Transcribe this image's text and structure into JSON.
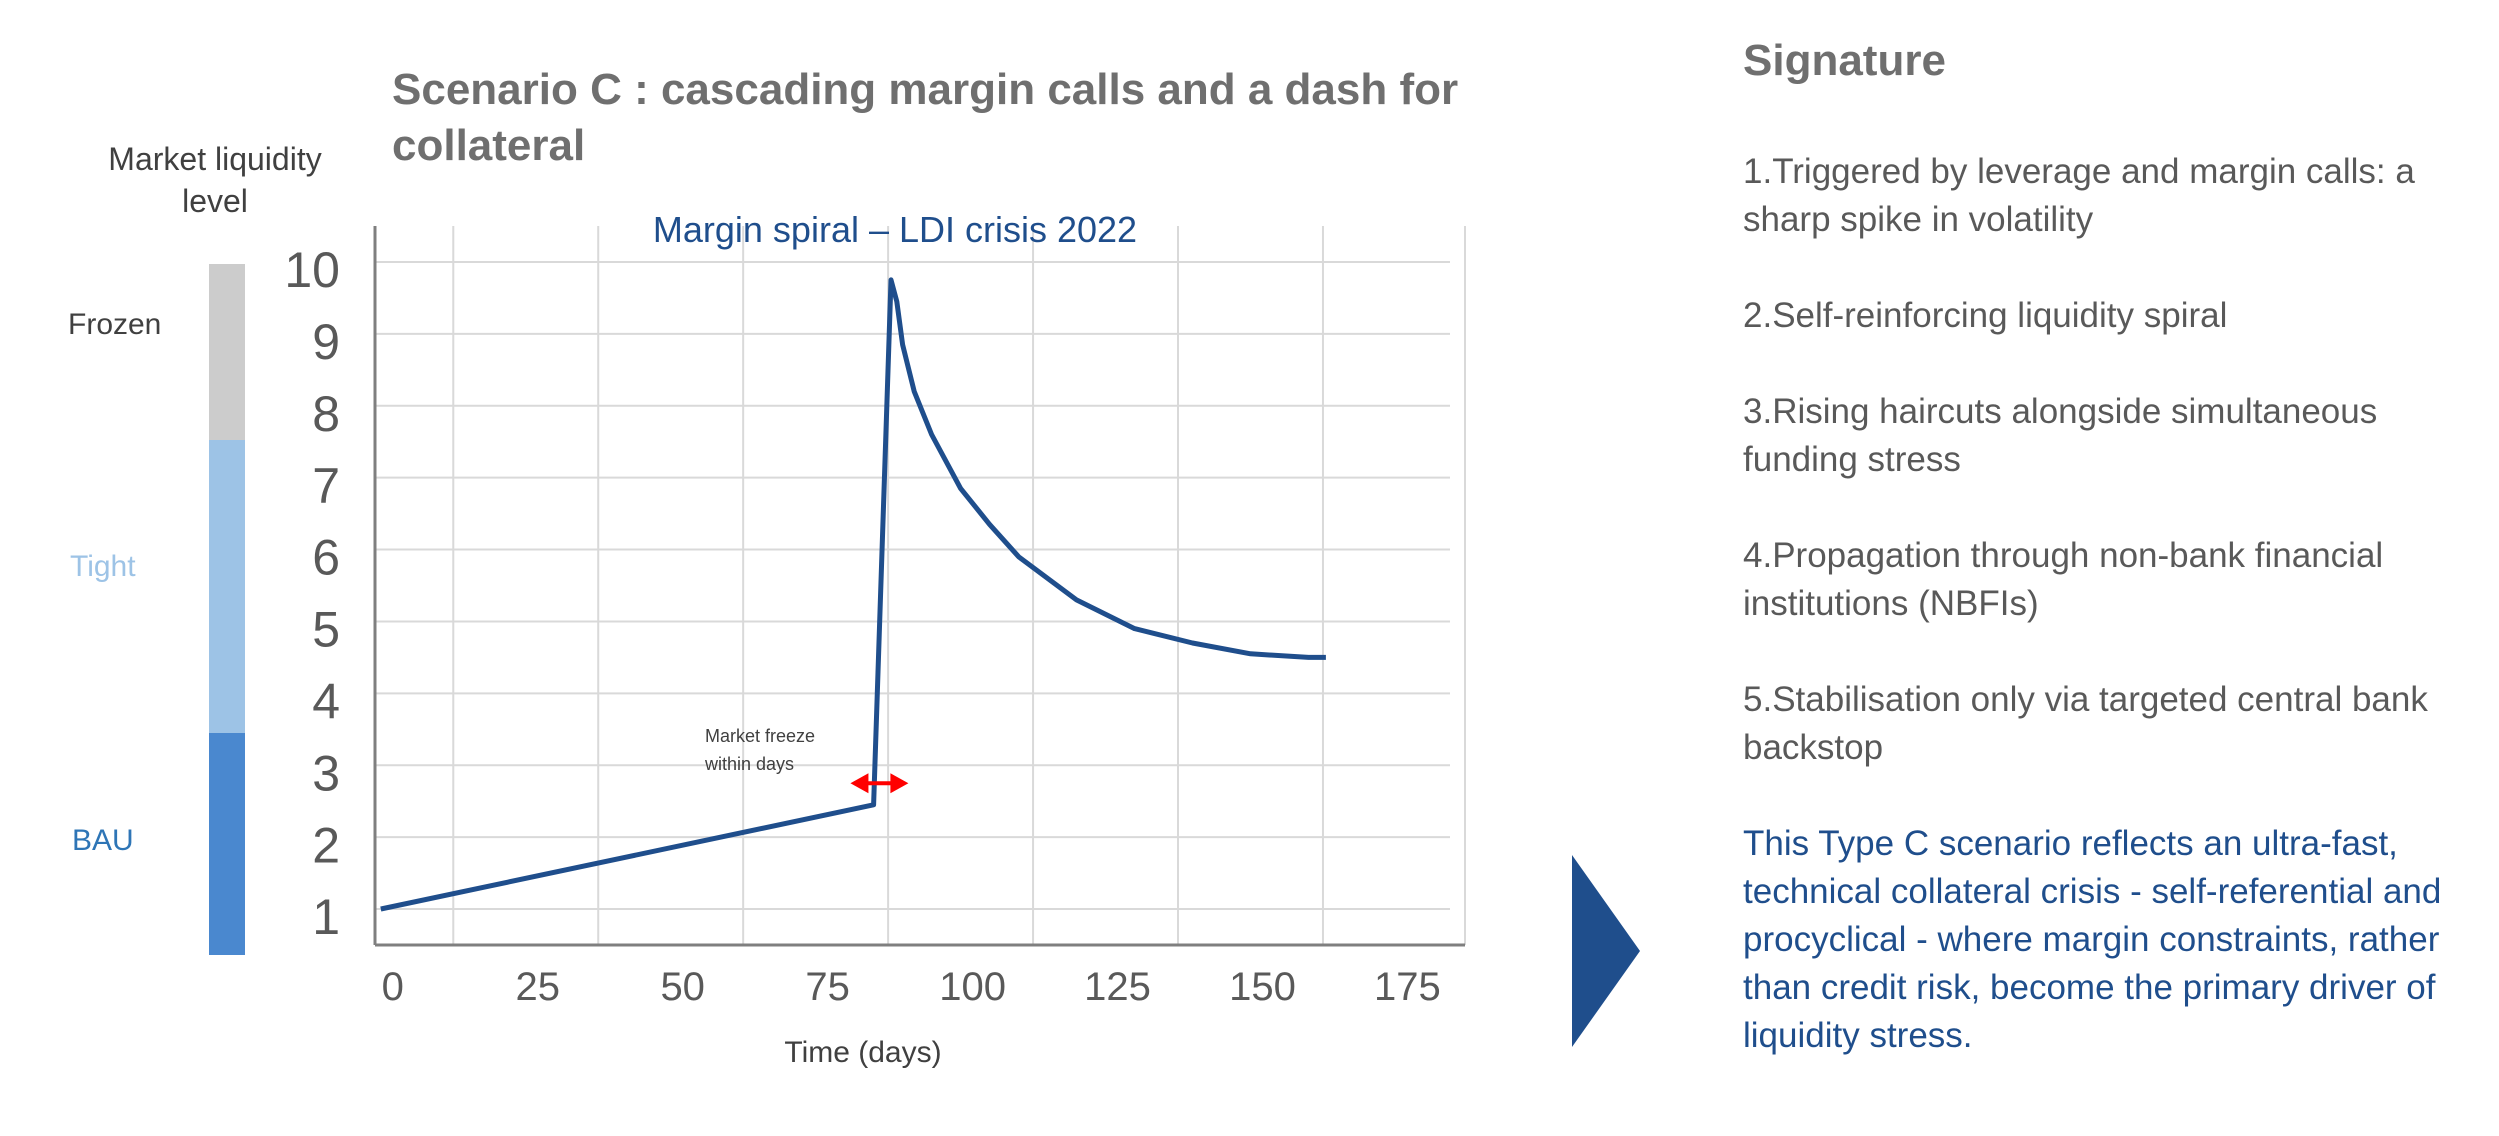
{
  "title": "Scenario C : cascading margin calls and a dash for collateral",
  "liquidity_scale": {
    "label": "Market liquidity level",
    "bands": [
      {
        "name": "Frozen",
        "color": "#cccccc",
        "label_color": "#404040",
        "from": 8,
        "to": 10.4
      },
      {
        "name": "Tight",
        "color": "#9dc3e6",
        "label_color": "#9dc3e6",
        "from": 4,
        "to": 8
      },
      {
        "name": "BAU",
        "color": "#4a88cf",
        "label_color": "#2e75b6",
        "from": 0.6,
        "to": 4
      }
    ]
  },
  "chart_data": {
    "type": "line",
    "title": "Margin spiral – LDI crisis 2022",
    "xlabel": "Time (days)",
    "ylabel": "",
    "xlim": [
      -1,
      187
    ],
    "ylim": [
      0.6,
      10.6
    ],
    "x_ticks": [
      0,
      25,
      50,
      75,
      100,
      125,
      150,
      175
    ],
    "y_ticks": [
      1,
      2,
      3,
      4,
      5,
      6,
      7,
      8,
      9,
      10
    ],
    "grid": true,
    "series": [
      {
        "name": "Market liquidity level",
        "color": "#1f4e8c",
        "x": [
          0,
          85,
          88,
          89,
          90,
          92,
          95,
          100,
          105,
          110,
          120,
          130,
          140,
          150,
          160,
          163
        ],
        "y": [
          1.1,
          2.55,
          9.85,
          9.55,
          8.95,
          8.3,
          7.7,
          6.95,
          6.45,
          6.0,
          5.4,
          5.0,
          4.8,
          4.65,
          4.6,
          4.6
        ]
      }
    ],
    "annotations": [
      {
        "text": "Market freeze within days",
        "x_from": 81,
        "x_to": 91,
        "y": 2.85,
        "color": "#ff0000"
      }
    ]
  },
  "signature": {
    "title": "Signature",
    "items": [
      "1.Triggered by leverage and margin calls: a sharp spike in volatility",
      "2.Self-reinforcing liquidity spiral",
      "3.Rising haircuts alongside simultaneous funding stress",
      "4.Propagation through non-bank financial institutions (NBFIs)",
      "5.Stabilisation only via targeted central bank backstop"
    ],
    "summary": "This Type C scenario reflects an ultra-fast, technical collateral crisis - self-referential and procyclical - where margin constraints, rather than credit risk, become the primary driver of liquidity stress."
  },
  "colors": {
    "arrow": "#1f4e8c",
    "grid": "#d9d9d9",
    "axis": "#7f7f7f"
  }
}
